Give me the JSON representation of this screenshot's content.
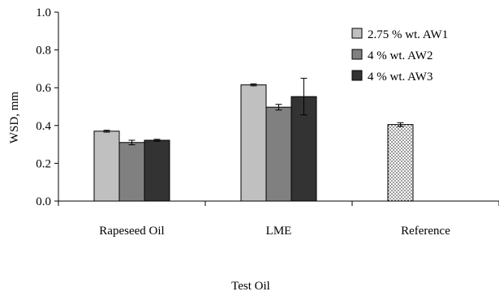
{
  "chart_data": {
    "type": "bar",
    "title": "",
    "xlabel": "Test Oil",
    "ylabel": "WSD, mm",
    "ylim": [
      0,
      1.0
    ],
    "yticks": [
      "0.0",
      "0.2",
      "0.4",
      "0.6",
      "0.8",
      "1.0"
    ],
    "categories": [
      "Rapeseed Oil",
      "LME",
      "Reference"
    ],
    "legend_position": "top-right",
    "series": [
      {
        "name": "2.75 % wt. AW1",
        "values": [
          0.37,
          0.615,
          null
        ],
        "errors": [
          0.005,
          0.005,
          null
        ],
        "color": "#c0c0c0"
      },
      {
        "name": "4 % wt. AW2",
        "values": [
          0.31,
          0.497,
          null
        ],
        "errors": [
          0.012,
          0.015,
          null
        ],
        "color": "#808080"
      },
      {
        "name": "4 % wt. AW3",
        "values": [
          0.322,
          0.553,
          null
        ],
        "errors": [
          0.005,
          0.097,
          null
        ],
        "color": "#333333"
      }
    ],
    "reference": {
      "category": "Reference",
      "value": 0.405,
      "error": 0.01,
      "pattern": "dotted",
      "color": "#ffffff"
    }
  }
}
